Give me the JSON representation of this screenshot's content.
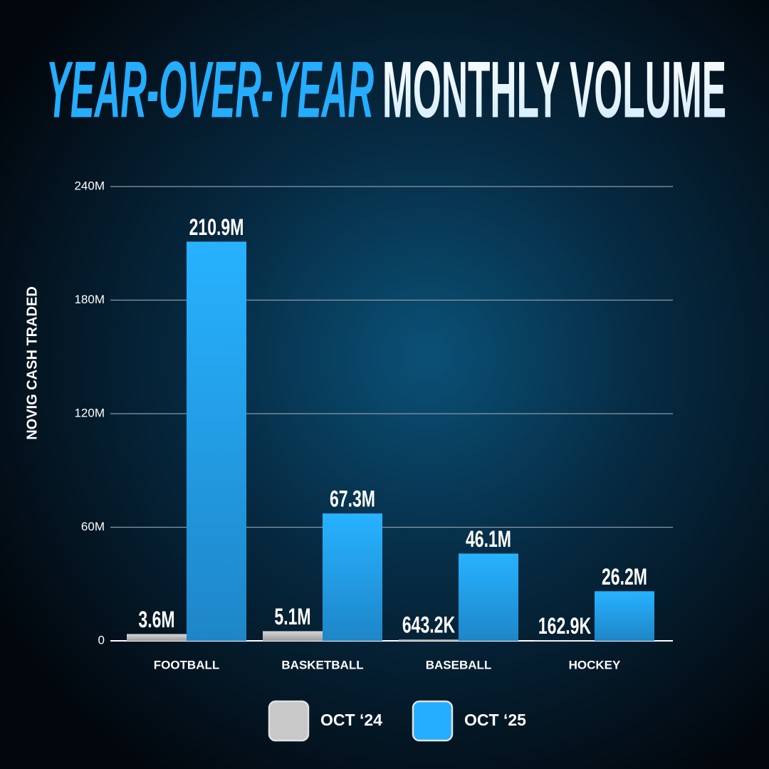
{
  "chart_data": {
    "type": "bar",
    "title": [
      "YEAR-OVER-YEAR",
      "MONTHLY VOLUME"
    ],
    "y_label": "NOVIG CASH TRADED",
    "categories": [
      "FOOTBALL",
      "BASKETBALL",
      "BASEBALL",
      "HOCKEY"
    ],
    "series": [
      {
        "name": "OCT ‘24",
        "color": "#c8c8c8",
        "values": [
          3600000,
          5100000,
          643200,
          162900
        ],
        "value_labels": [
          "3.6M",
          "5.1M",
          "643.2K",
          "162.9K"
        ]
      },
      {
        "name": "OCT ‘25",
        "color": "#25adff",
        "values": [
          210900000,
          67300000,
          46100000,
          26200000
        ],
        "value_labels": [
          "210.9M",
          "67.3M",
          "46.1M",
          "26.2M"
        ]
      }
    ],
    "ylim": [
      0,
      240000000
    ],
    "yticks": [
      0,
      {
        "value": 60000000,
        "label": "60M"
      },
      {
        "value": 120000000,
        "label": "120M"
      },
      {
        "value": 180000000,
        "label": "180M"
      },
      {
        "value": 240000000,
        "label": "240M"
      }
    ],
    "grid": true
  }
}
